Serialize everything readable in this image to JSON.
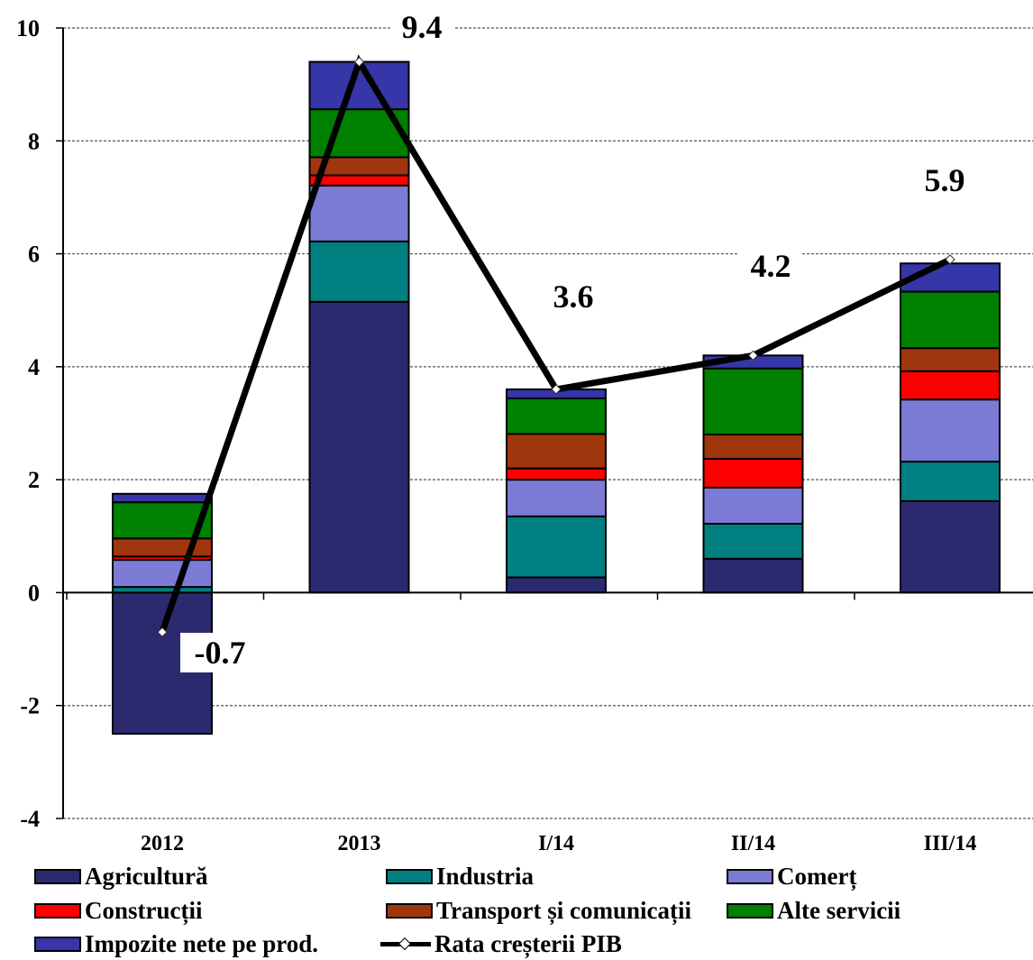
{
  "chart_data": {
    "type": "bar",
    "stacked": true,
    "categories": [
      "2012",
      "2013",
      "I/14",
      "II/14",
      "III/14"
    ],
    "ylim": [
      -4,
      10
    ],
    "yticks": [
      "-4",
      "-2",
      "0",
      "2",
      "4",
      "6",
      "8",
      "10"
    ],
    "ytick_values": [
      -4,
      -2,
      0,
      2,
      4,
      6,
      8,
      10
    ],
    "grid": "horizontal dotted",
    "legend_position": "bottom",
    "series": [
      {
        "name": "Agricultură",
        "color": "#2b2a6e",
        "values": [
          -2.5,
          5.15,
          0.27,
          0.6,
          1.62
        ]
      },
      {
        "name": "Industria",
        "color": "#008080",
        "values": [
          0.1,
          1.07,
          1.08,
          0.62,
          0.7
        ]
      },
      {
        "name": "Comerț",
        "color": "#7b7bd6",
        "values": [
          0.48,
          0.99,
          0.65,
          0.64,
          1.1
        ]
      },
      {
        "name": "Construcții",
        "color": "#ff0000",
        "values": [
          0.06,
          0.18,
          0.2,
          0.51,
          0.5
        ]
      },
      {
        "name": "Transport și comunicații",
        "color": "#a0360e",
        "values": [
          0.32,
          0.32,
          0.61,
          0.43,
          0.41
        ]
      },
      {
        "name": "Alte servicii",
        "color": "#008000",
        "values": [
          0.64,
          0.85,
          0.63,
          1.17,
          1.0
        ]
      },
      {
        "name": "Impozite nete pe prod.",
        "color": "#3636a8",
        "values": [
          0.15,
          0.84,
          0.16,
          0.23,
          0.5
        ]
      }
    ],
    "line": {
      "name": "Rata creșterii PIB",
      "values": [
        -0.7,
        9.4,
        3.6,
        4.2,
        5.9
      ]
    },
    "data_labels": [
      "-0.7",
      "9.4",
      "3.6",
      "4.2",
      "5.9"
    ]
  }
}
